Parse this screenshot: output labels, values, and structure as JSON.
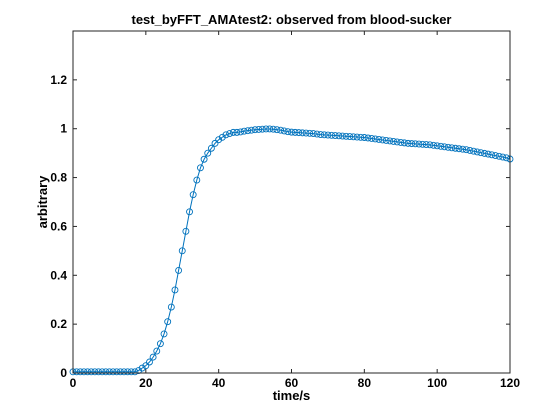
{
  "chart_data": {
    "type": "line",
    "title": "test_byFFT_AMAtest2:  observed from blood-sucker",
    "xlabel": "time/s",
    "ylabel": "arbitrary",
    "xlim": [
      0,
      120
    ],
    "ylim": [
      0,
      1.4
    ],
    "xticks": [
      0,
      20,
      40,
      60,
      80,
      100,
      120
    ],
    "yticks": [
      0,
      0.2,
      0.4,
      0.6,
      0.8,
      1,
      1.2
    ],
    "xtick_labels": [
      "0",
      "20",
      "40",
      "60",
      "80",
      "100",
      "120"
    ],
    "ytick_labels": [
      "0",
      "0.2",
      "0.4",
      "0.6",
      "0.8",
      "1",
      "1.2"
    ],
    "grid": false,
    "legend": "none",
    "series_color": "#0072BD",
    "marker": "circle",
    "series": [
      {
        "x": [
          0,
          1,
          2,
          3,
          4,
          5,
          6,
          7,
          8,
          9,
          10,
          11,
          12,
          13,
          14,
          15,
          16,
          17,
          18,
          19,
          20,
          21,
          22,
          23,
          24,
          25,
          26,
          27,
          28,
          29,
          30,
          31,
          32,
          33,
          34,
          35,
          36,
          37,
          38,
          39,
          40,
          41,
          42,
          43,
          44,
          45,
          46,
          47,
          48,
          49,
          50,
          51,
          52,
          53,
          54,
          55,
          56,
          57,
          58,
          59,
          60,
          61,
          62,
          63,
          64,
          65,
          66,
          67,
          68,
          69,
          70,
          71,
          72,
          73,
          74,
          75,
          76,
          77,
          78,
          79,
          80,
          81,
          82,
          83,
          84,
          85,
          86,
          87,
          88,
          89,
          90,
          91,
          92,
          93,
          94,
          95,
          96,
          97,
          98,
          99,
          100,
          101,
          102,
          103,
          104,
          105,
          106,
          107,
          108,
          109,
          110,
          111,
          112,
          113,
          114,
          115,
          116,
          117,
          118,
          119,
          120
        ],
        "values": [
          0.005,
          0.005,
          0.005,
          0.005,
          0.005,
          0.005,
          0.005,
          0.005,
          0.005,
          0.005,
          0.005,
          0.005,
          0.005,
          0.005,
          0.005,
          0.005,
          0.005,
          0.005,
          0.01,
          0.02,
          0.03,
          0.045,
          0.065,
          0.09,
          0.12,
          0.16,
          0.21,
          0.27,
          0.34,
          0.42,
          0.5,
          0.58,
          0.66,
          0.73,
          0.79,
          0.84,
          0.875,
          0.9,
          0.92,
          0.94,
          0.955,
          0.965,
          0.975,
          0.98,
          0.985,
          0.985,
          0.987,
          0.99,
          0.992,
          0.994,
          0.996,
          0.997,
          0.998,
          0.999,
          0.999,
          0.998,
          0.996,
          0.994,
          0.991,
          0.988,
          0.986,
          0.985,
          0.984,
          0.983,
          0.982,
          0.981,
          0.98,
          0.978,
          0.976,
          0.975,
          0.974,
          0.973,
          0.972,
          0.971,
          0.97,
          0.969,
          0.968,
          0.967,
          0.966,
          0.965,
          0.964,
          0.962,
          0.96,
          0.958,
          0.956,
          0.954,
          0.952,
          0.95,
          0.948,
          0.946,
          0.944,
          0.942,
          0.94,
          0.939,
          0.938,
          0.937,
          0.936,
          0.935,
          0.934,
          0.932,
          0.93,
          0.928,
          0.926,
          0.924,
          0.922,
          0.92,
          0.918,
          0.916,
          0.914,
          0.911,
          0.908,
          0.905,
          0.902,
          0.899,
          0.896,
          0.893,
          0.89,
          0.887,
          0.884,
          0.881,
          0.876
        ]
      }
    ]
  }
}
